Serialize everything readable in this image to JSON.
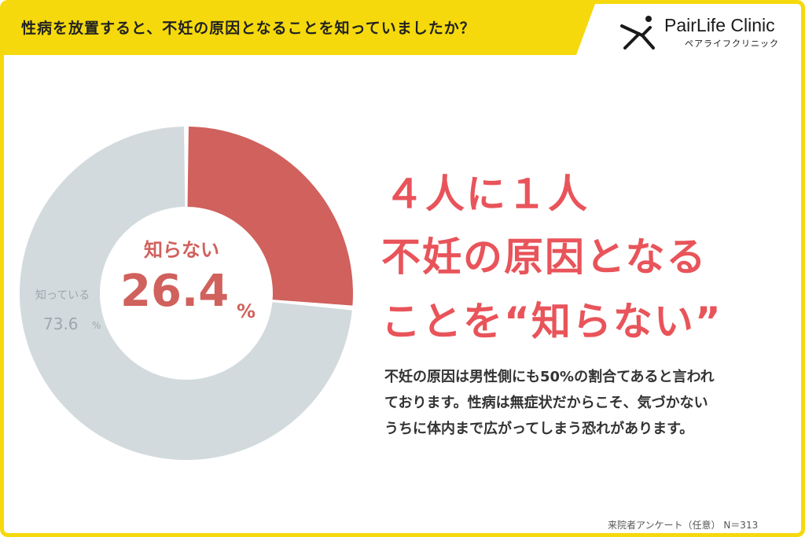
{
  "header": {
    "question": "性病を放置すると、不妊の原因となることを知っていましたか？",
    "bar_color": "#f5d90c"
  },
  "logo": {
    "name": "PairLife Clinic",
    "kana": "ペアライフクリニック",
    "icon": "running-person-icon"
  },
  "chart_data": {
    "type": "pie",
    "style": "donut",
    "slices": [
      {
        "label": "知らない",
        "value": 26.4,
        "color": "#d0615d"
      },
      {
        "label": "知っている",
        "value": 73.6,
        "color": "#d3dadd"
      }
    ],
    "center_label": "知らない",
    "center_value": "26.4",
    "center_unit": "%",
    "side_label": "知っている",
    "side_value": "73.6",
    "side_unit": "%"
  },
  "headline": {
    "line1": "４人に１人",
    "line2": "不妊の原因となる",
    "line3": "ことを“知らない”",
    "color": "#e8545a"
  },
  "body": {
    "line1": "不妊の原因は男性側にも50%の割合てあると言われ",
    "line2": "ております。性病は無症状だからこそ、気づかない",
    "line3": "うちに体内まで広がってしまう恐れがあります。"
  },
  "footer": {
    "source": "来院者アンケート（任意） N＝313"
  }
}
